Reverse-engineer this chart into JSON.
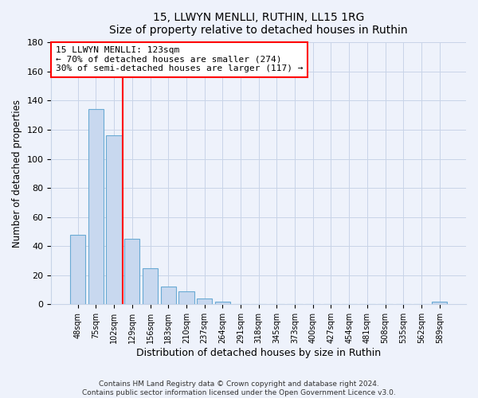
{
  "title": "15, LLWYN MENLLI, RUTHIN, LL15 1RG",
  "subtitle": "Size of property relative to detached houses in Ruthin",
  "xlabel": "Distribution of detached houses by size in Ruthin",
  "ylabel": "Number of detached properties",
  "bar_labels": [
    "48sqm",
    "75sqm",
    "102sqm",
    "129sqm",
    "156sqm",
    "183sqm",
    "210sqm",
    "237sqm",
    "264sqm",
    "291sqm",
    "318sqm",
    "345sqm",
    "373sqm",
    "400sqm",
    "427sqm",
    "454sqm",
    "481sqm",
    "508sqm",
    "535sqm",
    "562sqm",
    "589sqm"
  ],
  "bar_values": [
    48,
    134,
    116,
    45,
    25,
    12,
    9,
    4,
    2,
    0,
    0,
    0,
    0,
    0,
    0,
    0,
    0,
    0,
    0,
    0,
    2
  ],
  "bar_color": "#c8d8ef",
  "bar_edge_color": "#6aaad4",
  "vline_x_idx": 2.5,
  "vline_color": "red",
  "annotation_title": "15 LLWYN MENLLI: 123sqm",
  "annotation_line1": "← 70% of detached houses are smaller (274)",
  "annotation_line2": "30% of semi-detached houses are larger (117) →",
  "annotation_box_color": "#ffffff",
  "annotation_box_edge": "red",
  "ylim": [
    0,
    180
  ],
  "yticks": [
    0,
    20,
    40,
    60,
    80,
    100,
    120,
    140,
    160,
    180
  ],
  "footer_line1": "Contains HM Land Registry data © Crown copyright and database right 2024.",
  "footer_line2": "Contains public sector information licensed under the Open Government Licence v3.0.",
  "bg_color": "#eef2fb",
  "grid_color": "#c8d4e8"
}
